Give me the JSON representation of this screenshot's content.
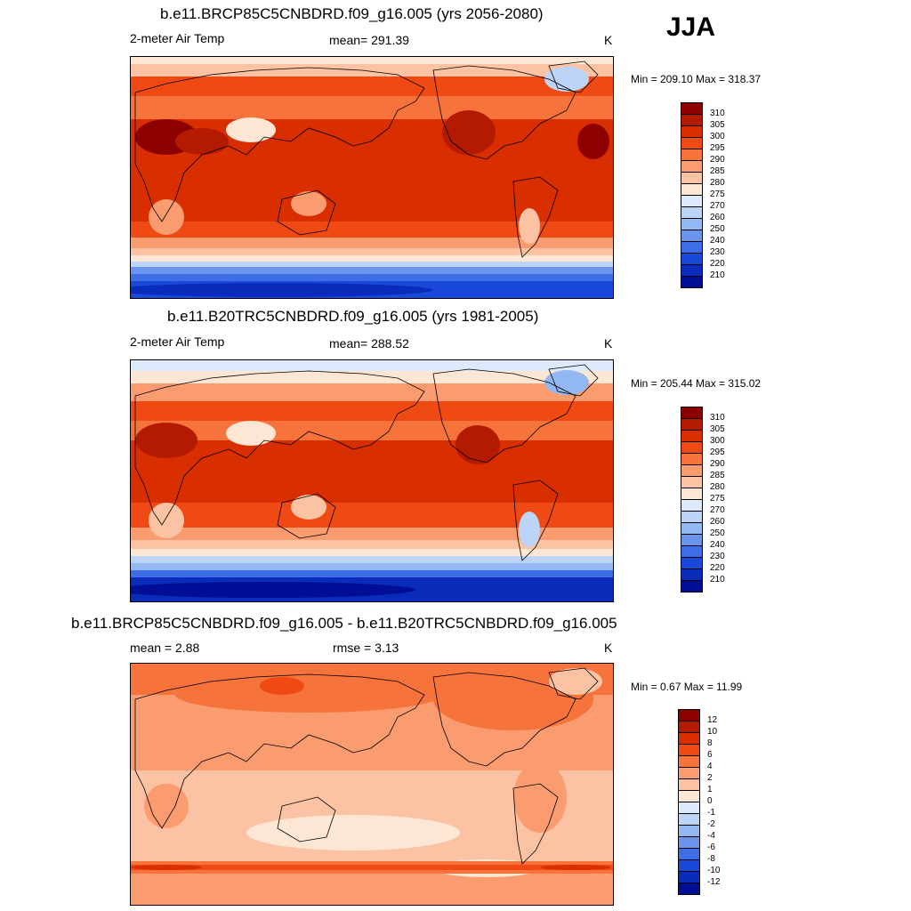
{
  "season": "JJA",
  "panels": [
    {
      "title": "b.e11.BRCP85C5CNBDRD.f09_g16.005 (yrs 2056-2080)",
      "left_label": "2-meter Air Temp",
      "center_label": "mean= 291.39",
      "units": "K",
      "minmax": "Min = 209.10 Max = 318.37"
    },
    {
      "title": "b.e11.B20TRC5CNBDRD.f09_g16.005 (yrs 1981-2005)",
      "left_label": "2-meter Air Temp",
      "center_label": "mean= 288.52",
      "units": "K",
      "minmax": "Min = 205.44 Max = 315.02"
    },
    {
      "title": "b.e11.BRCP85C5CNBDRD.f09_g16.005 - b.e11.B20TRC5CNBDRD.f09_g16.005",
      "left_label": "mean =   2.88",
      "center_label": "rmse =   3.13",
      "units": "K",
      "minmax": "Min =   0.67 Max =  11.99"
    }
  ],
  "colorbars": {
    "absolute": {
      "labels": [
        "310",
        "305",
        "300",
        "295",
        "290",
        "285",
        "280",
        "275",
        "270",
        "260",
        "250",
        "240",
        "230",
        "220",
        "210"
      ],
      "colors": [
        "#8c0000",
        "#b31a00",
        "#d92e00",
        "#f04a14",
        "#f7733c",
        "#fa9c70",
        "#fbc3a3",
        "#fde6d3",
        "#dceafb",
        "#bcd4f7",
        "#93b8f2",
        "#6b95ec",
        "#3e6ee6",
        "#1a48d9",
        "#0a2cbb",
        "#000e96"
      ]
    },
    "difference": {
      "labels": [
        "12",
        "10",
        "8",
        "6",
        "4",
        "2",
        "1",
        "0",
        "-1",
        "-2",
        "-4",
        "-6",
        "-8",
        "-10",
        "-12"
      ],
      "colors": [
        "#8c0000",
        "#b31a00",
        "#d92e00",
        "#f04a14",
        "#f7733c",
        "#fa9c70",
        "#fbc3a3",
        "#fde6d3",
        "#dceafb",
        "#bcd4f7",
        "#93b8f2",
        "#6b95ec",
        "#3e6ee6",
        "#1a48d9",
        "#0a2cbb",
        "#000e96"
      ]
    }
  }
}
